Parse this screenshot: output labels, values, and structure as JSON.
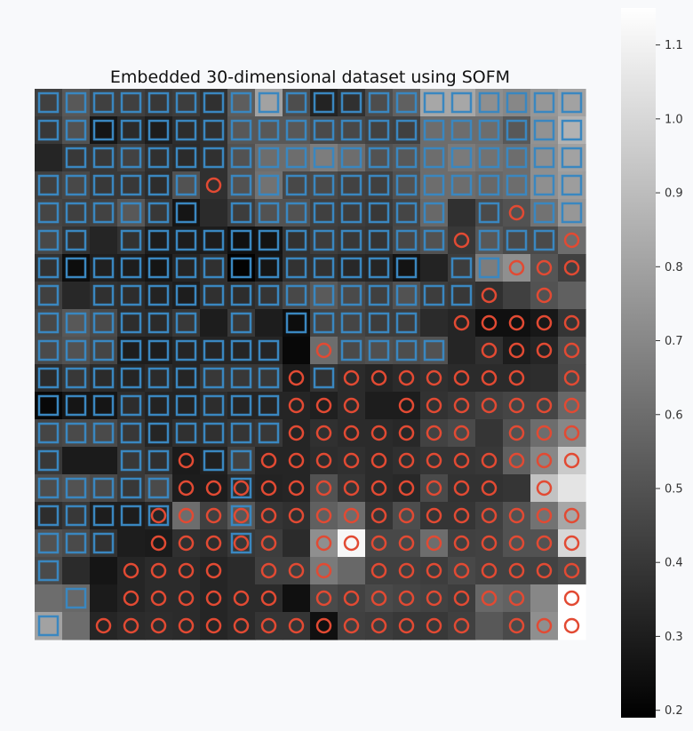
{
  "chart_data": {
    "type": "heatmap",
    "title": "Embedded 30-dimensional dataset using SOFM",
    "grid": false,
    "legend": "none",
    "colormap": "gray",
    "rows": 20,
    "cols": 20,
    "series": [
      {
        "marker": "square",
        "color": "#3a87c0"
      },
      {
        "marker": "circle",
        "color": "#e24a33"
      }
    ],
    "colorbar": {
      "range": [
        0.19,
        1.15
      ],
      "ticks": [
        "0.2",
        "0.3",
        "0.4",
        "0.5",
        "0.6",
        "0.7",
        "0.8",
        "0.9",
        "1.0",
        "1.1"
      ]
    },
    "values": [
      [
        0.43,
        0.52,
        0.43,
        0.43,
        0.4,
        0.42,
        0.37,
        0.54,
        0.8,
        0.48,
        0.32,
        0.37,
        0.48,
        0.55,
        0.82,
        0.82,
        0.73,
        0.7,
        0.76,
        0.8
      ],
      [
        0.4,
        0.5,
        0.27,
        0.35,
        0.3,
        0.36,
        0.37,
        0.52,
        0.52,
        0.52,
        0.47,
        0.46,
        0.44,
        0.43,
        0.6,
        0.6,
        0.6,
        0.52,
        0.74,
        0.86
      ],
      [
        0.33,
        0.4,
        0.4,
        0.44,
        0.37,
        0.35,
        0.37,
        0.5,
        0.6,
        0.6,
        0.66,
        0.6,
        0.5,
        0.52,
        0.6,
        0.65,
        0.62,
        0.6,
        0.73,
        0.8
      ],
      [
        0.43,
        0.46,
        0.4,
        0.4,
        0.36,
        0.5,
        0.37,
        0.5,
        0.62,
        0.46,
        0.47,
        0.44,
        0.43,
        0.5,
        0.6,
        0.6,
        0.58,
        0.6,
        0.73,
        0.78
      ],
      [
        0.45,
        0.43,
        0.44,
        0.52,
        0.4,
        0.27,
        0.35,
        0.42,
        0.5,
        0.5,
        0.43,
        0.42,
        0.4,
        0.45,
        0.58,
        0.37,
        0.47,
        0.5,
        0.62,
        0.76
      ],
      [
        0.46,
        0.38,
        0.33,
        0.38,
        0.3,
        0.3,
        0.3,
        0.25,
        0.26,
        0.38,
        0.42,
        0.4,
        0.39,
        0.46,
        0.5,
        0.4,
        0.52,
        0.47,
        0.47,
        0.6
      ],
      [
        0.38,
        0.24,
        0.31,
        0.3,
        0.27,
        0.33,
        0.37,
        0.2,
        0.27,
        0.38,
        0.38,
        0.34,
        0.33,
        0.26,
        0.32,
        0.42,
        0.66,
        0.73,
        0.51,
        0.43
      ],
      [
        0.43,
        0.34,
        0.37,
        0.36,
        0.32,
        0.3,
        0.37,
        0.36,
        0.39,
        0.46,
        0.53,
        0.47,
        0.43,
        0.5,
        0.42,
        0.4,
        0.37,
        0.43,
        0.5,
        0.55
      ],
      [
        0.46,
        0.52,
        0.47,
        0.36,
        0.35,
        0.4,
        0.3,
        0.4,
        0.3,
        0.24,
        0.45,
        0.45,
        0.42,
        0.42,
        0.35,
        0.33,
        0.25,
        0.25,
        0.28,
        0.39
      ],
      [
        0.47,
        0.5,
        0.45,
        0.3,
        0.3,
        0.33,
        0.33,
        0.33,
        0.33,
        0.22,
        0.6,
        0.47,
        0.49,
        0.48,
        0.5,
        0.33,
        0.37,
        0.3,
        0.33,
        0.48
      ],
      [
        0.35,
        0.4,
        0.35,
        0.33,
        0.35,
        0.33,
        0.4,
        0.4,
        0.4,
        0.29,
        0.38,
        0.35,
        0.33,
        0.35,
        0.37,
        0.35,
        0.35,
        0.35,
        0.36,
        0.47
      ],
      [
        0.22,
        0.27,
        0.27,
        0.36,
        0.32,
        0.32,
        0.36,
        0.33,
        0.33,
        0.33,
        0.31,
        0.35,
        0.3,
        0.3,
        0.38,
        0.4,
        0.43,
        0.45,
        0.45,
        0.58
      ],
      [
        0.45,
        0.47,
        0.47,
        0.4,
        0.33,
        0.37,
        0.37,
        0.39,
        0.4,
        0.33,
        0.37,
        0.35,
        0.35,
        0.34,
        0.44,
        0.47,
        0.39,
        0.5,
        0.6,
        0.7
      ],
      [
        0.4,
        0.29,
        0.29,
        0.4,
        0.37,
        0.29,
        0.31,
        0.44,
        0.33,
        0.33,
        0.36,
        0.37,
        0.35,
        0.37,
        0.39,
        0.39,
        0.4,
        0.55,
        0.7,
        0.95
      ],
      [
        0.48,
        0.5,
        0.47,
        0.4,
        0.47,
        0.3,
        0.3,
        0.35,
        0.32,
        0.33,
        0.5,
        0.39,
        0.35,
        0.34,
        0.47,
        0.38,
        0.38,
        0.39,
        0.92,
        1.05
      ],
      [
        0.36,
        0.4,
        0.3,
        0.3,
        0.33,
        0.6,
        0.43,
        0.52,
        0.39,
        0.37,
        0.55,
        0.6,
        0.39,
        0.48,
        0.39,
        0.39,
        0.43,
        0.5,
        0.62,
        0.82
      ],
      [
        0.5,
        0.47,
        0.38,
        0.3,
        0.29,
        0.37,
        0.36,
        0.4,
        0.42,
        0.35,
        0.73,
        1.12,
        0.46,
        0.46,
        0.6,
        0.43,
        0.44,
        0.5,
        0.5,
        1.0
      ],
      [
        0.47,
        0.35,
        0.27,
        0.33,
        0.35,
        0.35,
        0.33,
        0.35,
        0.43,
        0.43,
        0.65,
        0.58,
        0.43,
        0.43,
        0.42,
        0.46,
        0.44,
        0.44,
        0.44,
        0.48
      ],
      [
        0.6,
        0.58,
        0.29,
        0.33,
        0.35,
        0.35,
        0.33,
        0.35,
        0.35,
        0.25,
        0.47,
        0.44,
        0.47,
        0.45,
        0.44,
        0.42,
        0.58,
        0.56,
        0.7,
        1.15
      ],
      [
        0.8,
        0.6,
        0.33,
        0.35,
        0.36,
        0.35,
        0.33,
        0.35,
        0.39,
        0.39,
        0.25,
        0.43,
        0.42,
        0.4,
        0.4,
        0.43,
        0.52,
        0.47,
        0.73,
        1.15
      ]
    ],
    "markers": [
      "SSSSSSSSSSSSSSSSSSSS",
      "SSSSSSSSSSSSSSSSSSSS",
      "-SSSSSSSSSSSSSSSSSSS",
      "SSSSSSCSSSSSSSSSSSSS",
      "SSSSSS-SSSSSSSS-SCSS",
      "SS-SSSSSSSSSSSSCSSSC",
      "SSSSSSSSSSSSSS-SSCCC",
      "S-SSSSSSSSSSSSSSC-C-",
      "SSSSSS-S-SSSSS-CCCCC",
      "SSSSSSSSS-CSSSS-CCCC",
      "SSSSSSSSSCSCCCCCCC-C",
      "SSSSSSSSSCCC-CCCCCCC",
      "SSSSSSSSSCCCCCCC-CCC",
      "S--SSCSSCCCCCCCCCCCC",
      "SSSSSCCTCCCCCCCCC-C-",
      "SSSSTCCTCCCCCCCCCCCC",
      "SSS-CCCTC-CCCCCCCCCC",
      "S--CCCC-CCC-CCCCCCCC",
      "-S-CCCCCC-CCCCCCCC-C",
      "S-CCCCCCCCCCCCCC-CCC"
    ]
  }
}
